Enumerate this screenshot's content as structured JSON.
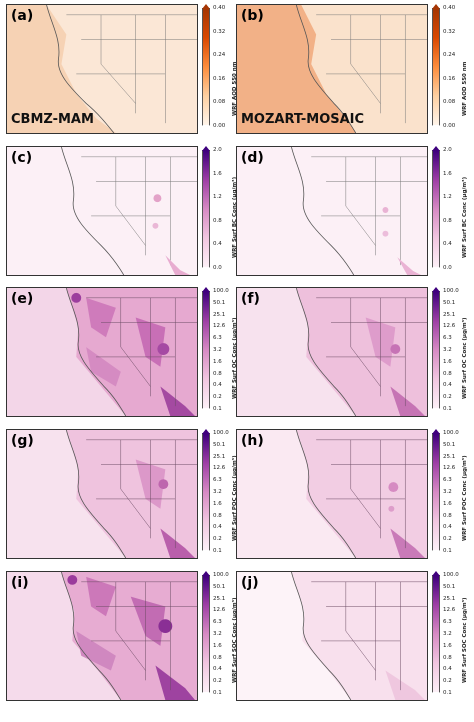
{
  "figure": {
    "colors": {
      "aod_low": "#fff5eb",
      "aod_high": "#a63603",
      "conc_low": "#fdf0f7",
      "conc_high": "#3f007d"
    },
    "panels": [
      {
        "label": "(a)",
        "model": "CBMZ-MAM",
        "colorbar": {
          "title": "WRF AOD 550 nm",
          "ticks": [
            "0.40",
            "0.32",
            "0.24",
            "0.16",
            "0.08",
            "0.00"
          ],
          "scheme": "orange"
        }
      },
      {
        "label": "(b)",
        "model": "MOZART-MOSAIC",
        "colorbar": {
          "title": "WRF AOD 550 nm",
          "ticks": [
            "0.40",
            "0.32",
            "0.24",
            "0.16",
            "0.08",
            "0.00"
          ],
          "scheme": "orange"
        }
      },
      {
        "label": "(c)",
        "model": "",
        "colorbar": {
          "title": "WRF Surf BC Conc (µg/m³)",
          "ticks": [
            "2.0",
            "1.6",
            "1.2",
            "0.8",
            "0.4",
            "0.0"
          ],
          "scheme": "purple"
        }
      },
      {
        "label": "(d)",
        "model": "",
        "colorbar": {
          "title": "WRF Surf BC Conc (µg/m³)",
          "ticks": [
            "2.0",
            "1.6",
            "1.2",
            "0.8",
            "0.4",
            "0.0"
          ],
          "scheme": "purple"
        }
      },
      {
        "label": "(e)",
        "model": "",
        "colorbar": {
          "title": "WRF Surf OC Conc (µg/m³)",
          "ticks": [
            "100.0",
            "50.1",
            "25.1",
            "12.6",
            "6.3",
            "3.2",
            "1.6",
            "0.8",
            "0.4",
            "0.2",
            "0.1"
          ],
          "scheme": "purple"
        }
      },
      {
        "label": "(f)",
        "model": "",
        "colorbar": {
          "title": "WRF Surf OC Conc (µg/m³)",
          "ticks": [
            "100.0",
            "50.1",
            "25.1",
            "12.6",
            "6.3",
            "3.2",
            "1.6",
            "0.8",
            "0.4",
            "0.2",
            "0.1"
          ],
          "scheme": "purple"
        }
      },
      {
        "label": "(g)",
        "model": "",
        "colorbar": {
          "title": "WRF Surf POC Conc (µg/m³)",
          "ticks": [
            "100.0",
            "50.1",
            "25.1",
            "12.6",
            "6.3",
            "3.2",
            "1.6",
            "0.8",
            "0.4",
            "0.2",
            "0.1"
          ],
          "scheme": "purple"
        }
      },
      {
        "label": "(h)",
        "model": "",
        "colorbar": {
          "title": "WRF Surf POC Conc (µg/m³)",
          "ticks": [
            "100.0",
            "50.1",
            "25.1",
            "12.6",
            "6.3",
            "3.2",
            "1.6",
            "0.8",
            "0.4",
            "0.2",
            "0.1"
          ],
          "scheme": "purple"
        }
      },
      {
        "label": "(i)",
        "model": "",
        "colorbar": {
          "title": "WRF Surf SOC Conc (µg/m³)",
          "ticks": [
            "100.0",
            "50.1",
            "25.1",
            "12.6",
            "6.3",
            "3.2",
            "1.6",
            "0.8",
            "0.4",
            "0.2",
            "0.1"
          ],
          "scheme": "purple"
        }
      },
      {
        "label": "(j)",
        "model": "",
        "colorbar": {
          "title": "WRF Surf SOC Conc (µg/m³)",
          "ticks": [
            "100.0",
            "50.1",
            "25.1",
            "12.6",
            "6.3",
            "3.2",
            "1.6",
            "0.8",
            "0.4",
            "0.2",
            "0.1"
          ],
          "scheme": "purple"
        }
      }
    ]
  }
}
